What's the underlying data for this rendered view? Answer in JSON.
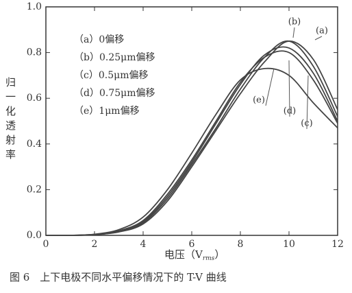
{
  "chart_data": {
    "type": "line",
    "y_label": "归一化透射率",
    "x_label": "电压（V",
    "x_label_sub": "rms",
    "x_label_end": "）",
    "caption": "图 6　上下电极不同水平偏移情况下的 T-V 曲线",
    "x": [
      0,
      1,
      2,
      3,
      4,
      5,
      6,
      7,
      8,
      9,
      10,
      11,
      12
    ],
    "series": [
      {
        "name": "（a）0偏移",
        "color": "#444444",
        "values": [
          0,
          0,
          0.003,
          0.015,
          0.05,
          0.15,
          0.3,
          0.46,
          0.62,
          0.76,
          0.85,
          0.77,
          0.55
        ]
      },
      {
        "name": "（b）0.25μm偏移",
        "color": "#444444",
        "values": [
          0,
          0,
          0.003,
          0.016,
          0.055,
          0.16,
          0.31,
          0.47,
          0.64,
          0.78,
          0.85,
          0.74,
          0.52
        ]
      },
      {
        "name": "（c）0.5μm偏移",
        "color": "#444444",
        "values": [
          0,
          0,
          0.004,
          0.018,
          0.06,
          0.17,
          0.32,
          0.49,
          0.66,
          0.79,
          0.82,
          0.71,
          0.5
        ]
      },
      {
        "name": "（d）0.75μm偏移",
        "color": "#444444",
        "values": [
          0,
          0,
          0.004,
          0.02,
          0.065,
          0.18,
          0.33,
          0.5,
          0.67,
          0.78,
          0.8,
          0.68,
          0.49
        ]
      },
      {
        "name": "（e）1μm偏移",
        "color": "#444444",
        "values": [
          0,
          0,
          0.005,
          0.025,
          0.08,
          0.2,
          0.36,
          0.53,
          0.68,
          0.73,
          0.7,
          0.58,
          0.47
        ]
      }
    ],
    "annotations": [
      "(a)",
      "(b)",
      "(c)",
      "(d)",
      "(e)"
    ],
    "xlim": [
      0,
      12
    ],
    "xticks": [
      0,
      2,
      4,
      6,
      8,
      10,
      12
    ],
    "ylim": [
      0,
      1
    ],
    "yticks": [
      {
        "value": 0,
        "label": "0.0"
      },
      0.2,
      0.4,
      0.6,
      0.8,
      {
        "value": 1,
        "label": "1.0"
      }
    ],
    "grid": false
  }
}
